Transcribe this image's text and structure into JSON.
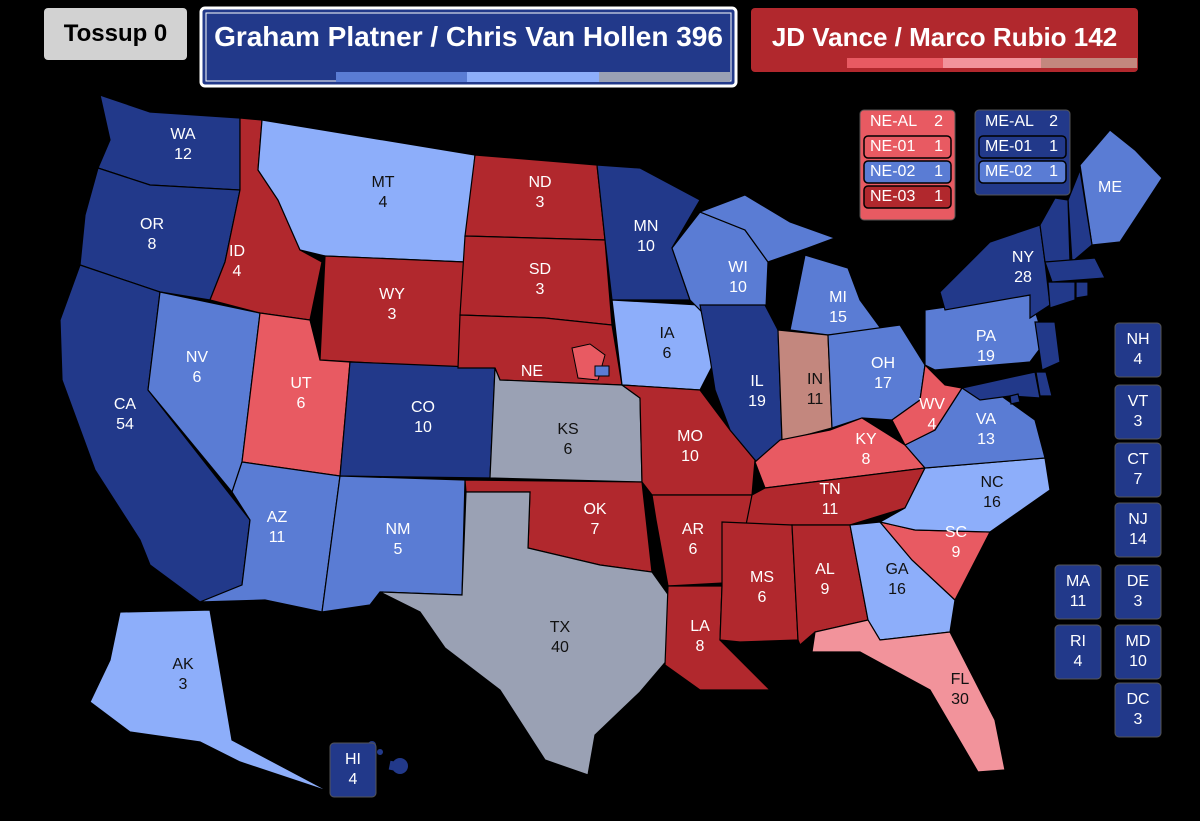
{
  "header": {
    "tossup": {
      "label": "Tossup",
      "count": 0,
      "color": "#d2d2d2"
    },
    "dem": {
      "label": "Graham Platner / Chris Van Hollen",
      "count": 396,
      "color": "#22398a"
    },
    "rep": {
      "label": "JD Vance / Marco Rubio",
      "count": 142,
      "color": "#b1282d"
    }
  },
  "states": [
    {
      "abbr": "WA",
      "ev": 12,
      "color": "#22398a"
    },
    {
      "abbr": "OR",
      "ev": 8,
      "color": "#22398a"
    },
    {
      "abbr": "CA",
      "ev": 54,
      "color": "#22398a"
    },
    {
      "abbr": "NV",
      "ev": 6,
      "color": "#5a7cd4"
    },
    {
      "abbr": "ID",
      "ev": 4,
      "color": "#b1282d"
    },
    {
      "abbr": "MT",
      "ev": 4,
      "color": "#8daefa"
    },
    {
      "abbr": "WY",
      "ev": 3,
      "color": "#b1282d"
    },
    {
      "abbr": "UT",
      "ev": 6,
      "color": "#e85a62"
    },
    {
      "abbr": "CO",
      "ev": 10,
      "color": "#22398a"
    },
    {
      "abbr": "AZ",
      "ev": 11,
      "color": "#5a7cd4"
    },
    {
      "abbr": "NM",
      "ev": 5,
      "color": "#5a7cd4"
    },
    {
      "abbr": "ND",
      "ev": 3,
      "color": "#b1282d"
    },
    {
      "abbr": "SD",
      "ev": 3,
      "color": "#b1282d"
    },
    {
      "abbr": "NE",
      "ev": null,
      "color": "#b1282d"
    },
    {
      "abbr": "KS",
      "ev": 6,
      "color": "#9aa1b4"
    },
    {
      "abbr": "OK",
      "ev": 7,
      "color": "#b1282d"
    },
    {
      "abbr": "TX",
      "ev": 40,
      "color": "#9aa1b4"
    },
    {
      "abbr": "MN",
      "ev": 10,
      "color": "#22398a"
    },
    {
      "abbr": "IA",
      "ev": 6,
      "color": "#8daefa"
    },
    {
      "abbr": "MO",
      "ev": 10,
      "color": "#b1282d"
    },
    {
      "abbr": "AR",
      "ev": 6,
      "color": "#b1282d"
    },
    {
      "abbr": "LA",
      "ev": 8,
      "color": "#b1282d"
    },
    {
      "abbr": "WI",
      "ev": 10,
      "color": "#5a7cd4"
    },
    {
      "abbr": "IL",
      "ev": 19,
      "color": "#22398a"
    },
    {
      "abbr": "MI",
      "ev": 15,
      "color": "#5a7cd4"
    },
    {
      "abbr": "IN",
      "ev": 11,
      "color": "#c3877e"
    },
    {
      "abbr": "OH",
      "ev": 17,
      "color": "#5a7cd4"
    },
    {
      "abbr": "KY",
      "ev": 8,
      "color": "#e85a62"
    },
    {
      "abbr": "TN",
      "ev": 11,
      "color": "#b1282d"
    },
    {
      "abbr": "MS",
      "ev": 6,
      "color": "#b1282d"
    },
    {
      "abbr": "AL",
      "ev": 9,
      "color": "#b1282d"
    },
    {
      "abbr": "GA",
      "ev": 16,
      "color": "#8daefa"
    },
    {
      "abbr": "FL",
      "ev": 30,
      "color": "#f2939b"
    },
    {
      "abbr": "SC",
      "ev": 9,
      "color": "#e85a62"
    },
    {
      "abbr": "NC",
      "ev": 16,
      "color": "#8daefa"
    },
    {
      "abbr": "VA",
      "ev": 13,
      "color": "#5a7cd4"
    },
    {
      "abbr": "WV",
      "ev": 4,
      "color": "#e85a62"
    },
    {
      "abbr": "PA",
      "ev": 19,
      "color": "#5a7cd4"
    },
    {
      "abbr": "NY",
      "ev": 28,
      "color": "#22398a"
    },
    {
      "abbr": "ME",
      "ev": null,
      "color": "#5a7cd4"
    },
    {
      "abbr": "NH",
      "ev": 4,
      "color": "#22398a"
    },
    {
      "abbr": "VT",
      "ev": 3,
      "color": "#22398a"
    },
    {
      "abbr": "CT",
      "ev": 7,
      "color": "#22398a"
    },
    {
      "abbr": "NJ",
      "ev": 14,
      "color": "#22398a"
    },
    {
      "abbr": "MA",
      "ev": 11,
      "color": "#22398a"
    },
    {
      "abbr": "DE",
      "ev": 3,
      "color": "#22398a"
    },
    {
      "abbr": "RI",
      "ev": 4,
      "color": "#22398a"
    },
    {
      "abbr": "MD",
      "ev": 10,
      "color": "#22398a"
    },
    {
      "abbr": "DC",
      "ev": 3,
      "color": "#22398a"
    },
    {
      "abbr": "AK",
      "ev": 3,
      "color": "#8daefa"
    },
    {
      "abbr": "HI",
      "ev": 4,
      "color": "#22398a"
    }
  ],
  "districts": {
    "NE": {
      "color": "#e85a62",
      "items": [
        {
          "name": "NE-AL",
          "ev": 2,
          "color": "#e85a62"
        },
        {
          "name": "NE-01",
          "ev": 1,
          "color": "#e85a62"
        },
        {
          "name": "NE-02",
          "ev": 1,
          "color": "#5a7cd4"
        },
        {
          "name": "NE-03",
          "ev": 1,
          "color": "#b1282d"
        }
      ]
    },
    "ME": {
      "color": "#22398a",
      "items": [
        {
          "name": "ME-AL",
          "ev": 2,
          "color": "#22398a"
        },
        {
          "name": "ME-01",
          "ev": 1,
          "color": "#22398a"
        },
        {
          "name": "ME-02",
          "ev": 1,
          "color": "#5a7cd4"
        }
      ]
    }
  }
}
